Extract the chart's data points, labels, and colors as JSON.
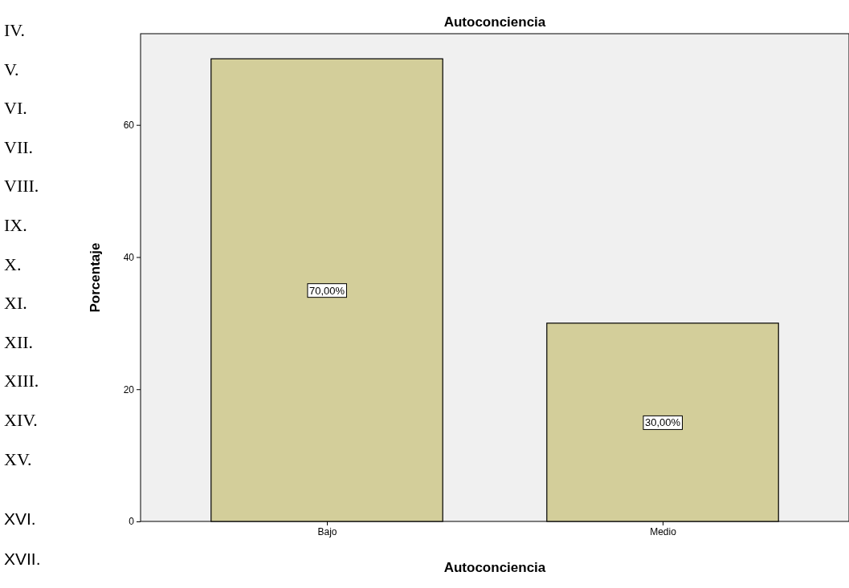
{
  "chart_data": {
    "type": "bar",
    "title": "Autoconciencia",
    "xlabel": "Autoconciencia",
    "ylabel": "Porcentaje",
    "categories": [
      "Bajo",
      "Medio"
    ],
    "values": [
      70,
      30
    ],
    "color": "#d3ce9a",
    "value_labels": [
      "70,00%",
      "30,00%"
    ],
    "ylim": [
      0,
      73.8
    ],
    "yticks": [
      0,
      20,
      40,
      60
    ],
    "grid": false,
    "annotations": [
      "IV.",
      "V.",
      "VI.",
      "VII.",
      "VIII.",
      "IX.",
      "X.",
      "XI.",
      "XII.",
      "XIII.",
      "XIV.",
      "XV.",
      "XVI.",
      "XVII."
    ]
  }
}
